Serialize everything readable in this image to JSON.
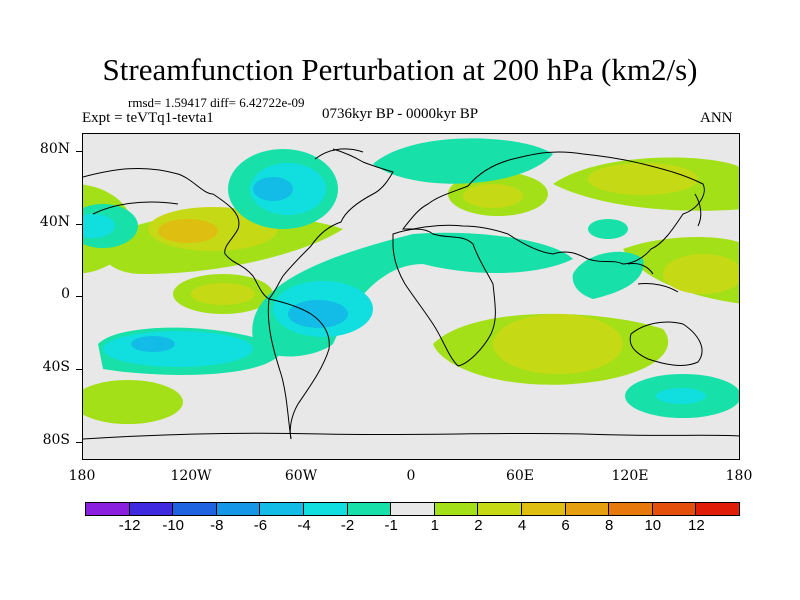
{
  "title": "Streamfunction Perturbation at 200 hPa (km2/s)",
  "stats": "rmsd= 1.59417 diff= 6.42722e-09",
  "expt": "Expt = teVTq1-tevta1",
  "period": "0736kyr BP - 0000kyr BP",
  "season": "ANN",
  "y_axis": [
    "80N",
    "40N",
    "0",
    "40S",
    "80S"
  ],
  "x_axis": [
    "180",
    "120W",
    "60W",
    "0",
    "60E",
    "120E",
    "180"
  ],
  "colorbar": {
    "colors": [
      "#8b1fe0",
      "#3f2ae0",
      "#1f63e0",
      "#1596e6",
      "#12bce6",
      "#11dede",
      "#17e0a8",
      "#e8e8e8",
      "#a4e017",
      "#c6d915",
      "#dfbe12",
      "#e6a00f",
      "#e6780c",
      "#e54f0c",
      "#e01e08"
    ],
    "labels": [
      "-12",
      "-10",
      "-8",
      "-6",
      "-4",
      "-2",
      "-1",
      "1",
      "2",
      "4",
      "6",
      "8",
      "10",
      "12"
    ]
  },
  "map_colors": {
    "neutral": "#e8e8e8",
    "pos1": "#a4e017",
    "pos2": "#c6d915",
    "pos3": "#dfbe12",
    "neg1": "#17e0a8",
    "neg2": "#11dede",
    "neg3": "#12bce6",
    "neg4": "#1596e6",
    "coast": "#000000"
  }
}
